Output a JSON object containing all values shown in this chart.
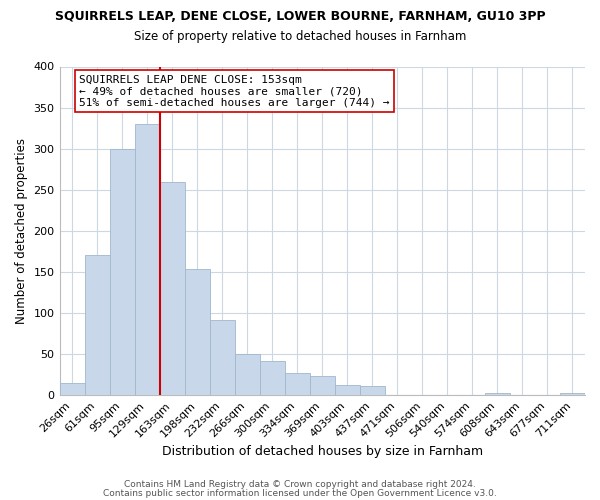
{
  "title": "SQUIRRELS LEAP, DENE CLOSE, LOWER BOURNE, FARNHAM, GU10 3PP",
  "subtitle": "Size of property relative to detached houses in Farnham",
  "xlabel": "Distribution of detached houses by size in Farnham",
  "ylabel": "Number of detached properties",
  "bar_labels": [
    "26sqm",
    "61sqm",
    "95sqm",
    "129sqm",
    "163sqm",
    "198sqm",
    "232sqm",
    "266sqm",
    "300sqm",
    "334sqm",
    "369sqm",
    "403sqm",
    "437sqm",
    "471sqm",
    "506sqm",
    "540sqm",
    "574sqm",
    "608sqm",
    "643sqm",
    "677sqm",
    "711sqm"
  ],
  "bar_values": [
    15,
    170,
    300,
    330,
    260,
    153,
    92,
    50,
    42,
    27,
    23,
    12,
    11,
    0,
    0,
    0,
    0,
    3,
    0,
    0,
    3
  ],
  "bar_color": "#c8d8ea",
  "bar_edge_color": "#a0b8cc",
  "vline_index": 4,
  "vline_color": "#cc0000",
  "annotation_text": "SQUIRRELS LEAP DENE CLOSE: 153sqm\n← 49% of detached houses are smaller (720)\n51% of semi-detached houses are larger (744) →",
  "annotation_box_facecolor": "#ffffff",
  "annotation_box_edgecolor": "#cc0000",
  "ylim": [
    0,
    400
  ],
  "yticks": [
    0,
    50,
    100,
    150,
    200,
    250,
    300,
    350,
    400
  ],
  "footer_line1": "Contains HM Land Registry data © Crown copyright and database right 2024.",
  "footer_line2": "Contains public sector information licensed under the Open Government Licence v3.0.",
  "background_color": "#ffffff",
  "grid_color": "#ccd8e4",
  "title_fontsize": 9,
  "subtitle_fontsize": 8.5,
  "xlabel_fontsize": 9,
  "ylabel_fontsize": 8.5,
  "tick_fontsize": 8,
  "annotation_fontsize": 8,
  "footer_fontsize": 6.5
}
